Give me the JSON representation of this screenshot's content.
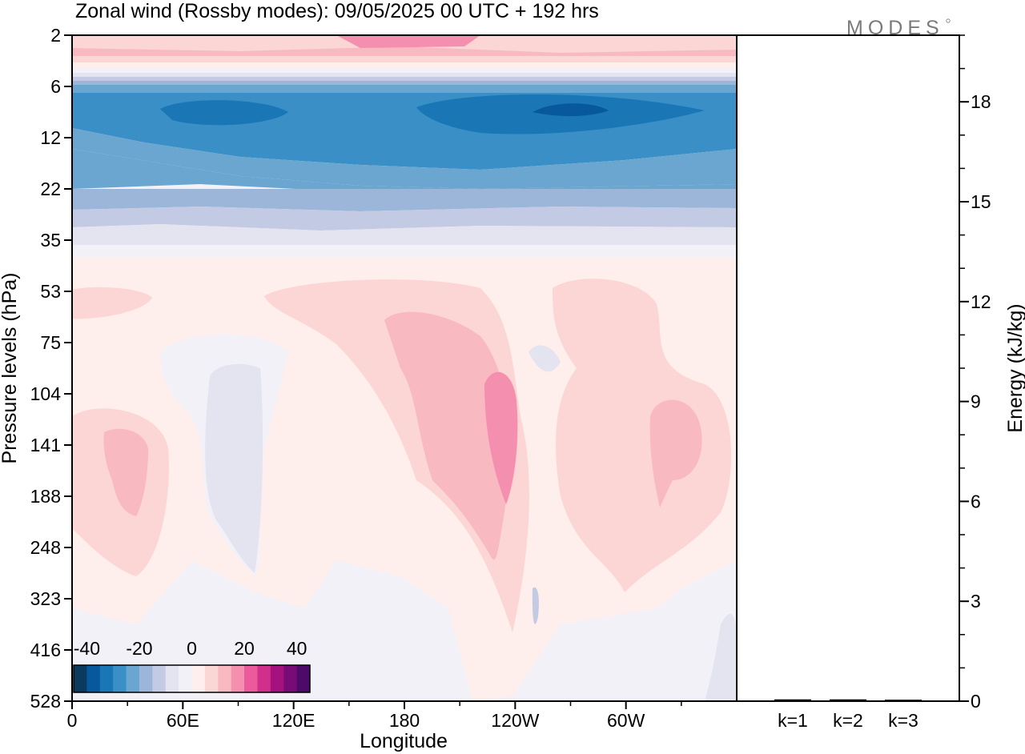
{
  "chart_data": [
    {
      "type": "heatmap",
      "title": "Zonal wind (Rossby modes):  09/05/2025  00 UTC  + 192 hrs",
      "xlabel": "Longitude",
      "ylabel": "Pressure levels (hPa)",
      "x_ticks": [
        "0",
        "60E",
        "120E",
        "180",
        "120W",
        "60W"
      ],
      "x_tick_degrees": [
        0,
        60,
        120,
        180,
        240,
        300
      ],
      "x_range_degrees": [
        0,
        360
      ],
      "y_ticks": [
        "2",
        "6",
        "12",
        "22",
        "35",
        "53",
        "75",
        "104",
        "141",
        "188",
        "248",
        "323",
        "416",
        "528"
      ],
      "y_scale": "model levels (top = 2 hPa, bottom = 528 hPa)",
      "colorbar": {
        "tick_labels": [
          "-40",
          "-20",
          "0",
          "20",
          "40"
        ],
        "tick_values": [
          -40,
          -20,
          0,
          20,
          40
        ],
        "range": [
          -45,
          45
        ],
        "step": 5,
        "colors": [
          "#0a3a5e",
          "#08589e",
          "#1a76b4",
          "#3a90c6",
          "#6aa6cf",
          "#9bb6d8",
          "#c3cae3",
          "#e4e4f0",
          "#f3f1f8",
          "#feeeec",
          "#fbd6d5",
          "#f9b9c1",
          "#f58fb0",
          "#ea5a9c",
          "#d02f8c",
          "#a5127e",
          "#780c76",
          "#4d0a68"
        ]
      },
      "contour_bands": [
        {
          "band": "stratosphere-top",
          "pressure": "2-6",
          "value_approx": 10
        },
        {
          "band": "stratospheric-easterly-core",
          "pressure": "6-12",
          "value_approx": -35
        },
        {
          "band": "stratospheric-easterlies",
          "pressure": "12-35",
          "value_approx": -20
        },
        {
          "band": "weak-westerlies",
          "pressure": "53-528",
          "value_approx": 10
        },
        {
          "band": "westerly-max",
          "longitude_deg": 245,
          "pressure": "104-188",
          "value_approx": 25
        }
      ],
      "grid": false,
      "colorbar_placement": "bottom-left"
    },
    {
      "type": "bar",
      "ylabel": "Energy (kJ/kg)",
      "categories": [
        "k=1",
        "k=2",
        "k=3"
      ],
      "values": [
        0.03,
        0.03,
        0.02
      ],
      "ylim": [
        0,
        20
      ],
      "y_ticks": [
        "0",
        "3",
        "6",
        "9",
        "12",
        "15",
        "18"
      ],
      "y_tick_values": [
        0,
        3,
        6,
        9,
        12,
        15,
        18
      ],
      "axis_side": "right"
    }
  ],
  "logo": "MODES"
}
